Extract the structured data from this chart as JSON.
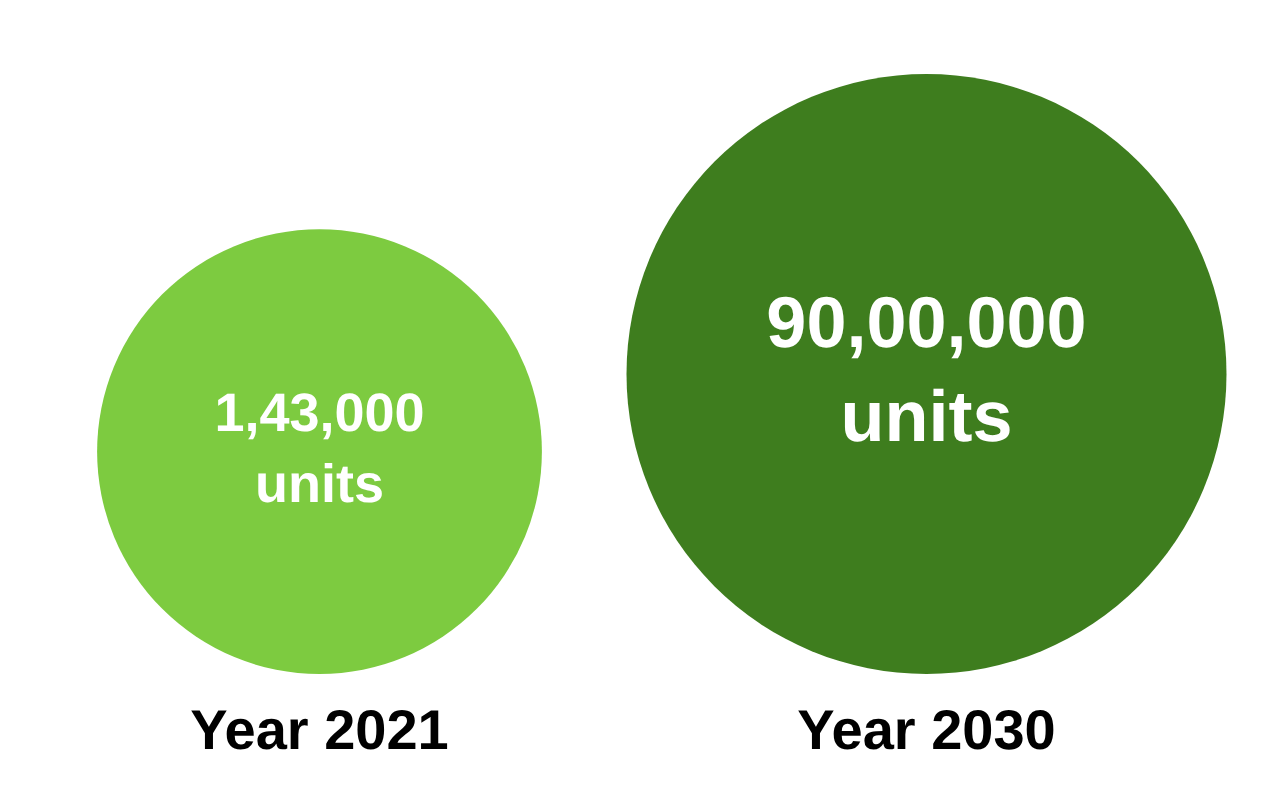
{
  "chart_data": {
    "type": "other",
    "categories": [
      "Year 2021",
      "Year 2030"
    ],
    "values": [
      143000,
      9000000
    ],
    "value_labels": [
      "1,43,000\nunits",
      "90,00,000\nunits"
    ],
    "colors": [
      "#7dcb40",
      "#3e7d1e"
    ]
  }
}
